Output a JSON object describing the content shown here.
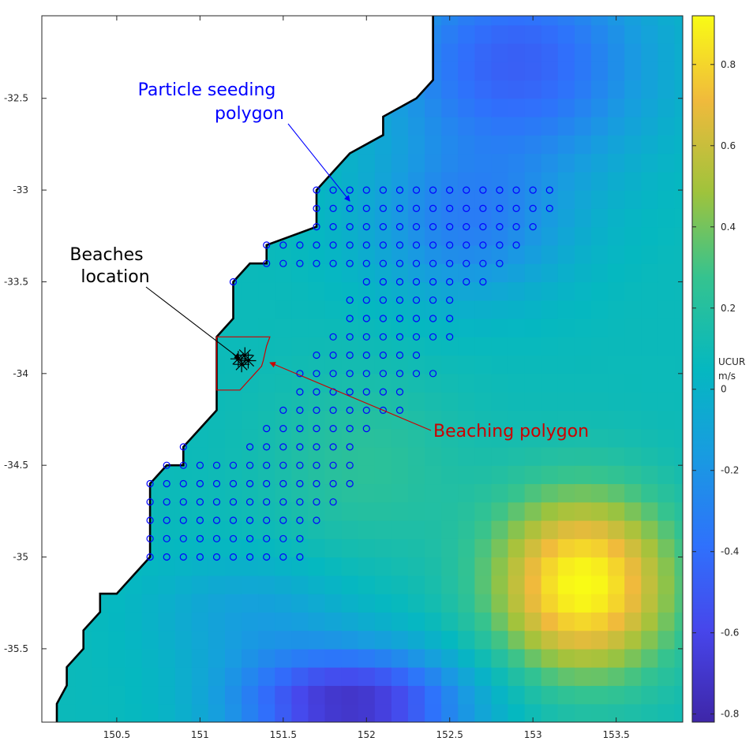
{
  "chart_data": {
    "type": "heatmap",
    "title": "",
    "xlabel": "",
    "ylabel": "",
    "xlim": [
      150.05,
      153.9
    ],
    "ylim": [
      -35.9,
      -32.05
    ],
    "x_ticks": [
      150.5,
      151,
      151.5,
      152,
      152.5,
      153,
      153.5
    ],
    "y_ticks": [
      -32.5,
      -33,
      -33.5,
      -34,
      -34.5,
      -35,
      -35.5
    ],
    "x_tick_labels": [
      "150.5",
      "151",
      "151.5",
      "152",
      "152.5",
      "153",
      "153.5"
    ],
    "y_tick_labels": [
      "-32.5",
      "-33",
      "-33.5",
      "-34",
      "-34.5",
      "-35",
      "-35.5"
    ],
    "grid": false,
    "colorbar": {
      "title": "UCUR",
      "units": "m/s",
      "range": [
        -0.82,
        0.92
      ],
      "ticks": [
        -0.8,
        -0.6,
        -0.4,
        -0.2,
        0,
        0.2,
        0.4,
        0.6,
        0.8
      ],
      "tick_labels": [
        "-0.8",
        "-0.6",
        "-0.4",
        "-0.2",
        "0",
        "0.2",
        "0.4",
        "0.6",
        "0.8"
      ],
      "colormap": "parula"
    },
    "grid_cell_deg": [
      0.1,
      0.1
    ],
    "velocity_features": [
      {
        "lon": 153.3,
        "lat": -35.15,
        "amplitude": 0.85,
        "rx": 0.55,
        "ry": 0.5
      },
      {
        "lon": 151.9,
        "lat": -35.8,
        "amplitude": -0.8,
        "rx": 0.7,
        "ry": 0.3
      },
      {
        "lon": 152.9,
        "lat": -32.3,
        "amplitude": -0.55,
        "rx": 0.8,
        "ry": 0.6
      },
      {
        "lon": 152.6,
        "lat": -33.2,
        "amplitude": -0.35,
        "rx": 0.6,
        "ry": 0.4
      },
      {
        "lon": 152.0,
        "lat": -34.5,
        "amplitude": 0.15,
        "rx": 0.6,
        "ry": 0.5
      },
      {
        "lon": 151.3,
        "lat": -35.3,
        "amplitude": -0.2,
        "rx": 0.6,
        "ry": 0.3
      }
    ],
    "coastline": [
      [
        150.14,
        -35.9
      ],
      [
        150.14,
        -35.8
      ],
      [
        150.2,
        -35.7
      ],
      [
        150.2,
        -35.6
      ],
      [
        150.3,
        -35.5
      ],
      [
        150.3,
        -35.4
      ],
      [
        150.4,
        -35.3
      ],
      [
        150.4,
        -35.2
      ],
      [
        150.5,
        -35.2
      ],
      [
        150.6,
        -35.1
      ],
      [
        150.7,
        -35.0
      ],
      [
        150.7,
        -34.9
      ],
      [
        150.7,
        -34.6
      ],
      [
        150.8,
        -34.5
      ],
      [
        150.9,
        -34.5
      ],
      [
        150.9,
        -34.4
      ],
      [
        151.0,
        -34.3
      ],
      [
        151.1,
        -34.2
      ],
      [
        151.1,
        -34.1
      ],
      [
        151.1,
        -33.8
      ],
      [
        151.2,
        -33.7
      ],
      [
        151.2,
        -33.5
      ],
      [
        151.3,
        -33.4
      ],
      [
        151.4,
        -33.4
      ],
      [
        151.4,
        -33.3
      ],
      [
        151.7,
        -33.2
      ],
      [
        151.7,
        -33.0
      ],
      [
        151.8,
        -32.9
      ],
      [
        151.9,
        -32.8
      ],
      [
        152.1,
        -32.7
      ],
      [
        152.1,
        -32.6
      ],
      [
        152.3,
        -32.5
      ],
      [
        152.4,
        -32.4
      ],
      [
        152.4,
        -32.05
      ]
    ],
    "seed_points_by_lat": [
      {
        "lat": -33.0,
        "lons": [
          151.7,
          151.8,
          151.9,
          152.0,
          152.1,
          152.2,
          152.3,
          152.4,
          152.5,
          152.6,
          152.7,
          152.8,
          152.9,
          153.0,
          153.1
        ]
      },
      {
        "lat": -33.1,
        "lons": [
          151.7,
          151.8,
          151.9,
          152.0,
          152.1,
          152.2,
          152.3,
          152.4,
          152.5,
          152.6,
          152.7,
          152.8,
          152.9,
          153.0,
          153.1
        ]
      },
      {
        "lat": -33.2,
        "lons": [
          151.7,
          151.8,
          151.9,
          152.0,
          152.1,
          152.2,
          152.3,
          152.4,
          152.5,
          152.6,
          152.7,
          152.8,
          152.9,
          153.0
        ]
      },
      {
        "lat": -33.3,
        "lons": [
          151.4,
          151.5,
          151.6,
          151.7,
          151.8,
          151.9,
          152.0,
          152.1,
          152.2,
          152.3,
          152.4,
          152.5,
          152.6,
          152.7,
          152.8,
          152.9
        ]
      },
      {
        "lat": -33.4,
        "lons": [
          151.4,
          151.5,
          151.6,
          151.7,
          151.8,
          151.9,
          152.0,
          152.1,
          152.2,
          152.3,
          152.4,
          152.5,
          152.6,
          152.7,
          152.8
        ]
      },
      {
        "lat": -33.5,
        "lons": [
          151.2,
          152.0,
          152.1,
          152.2,
          152.3,
          152.4,
          152.5,
          152.6,
          152.7
        ]
      },
      {
        "lat": -33.6,
        "lons": [
          151.9,
          152.0,
          152.1,
          152.2,
          152.3,
          152.4,
          152.5
        ]
      },
      {
        "lat": -33.7,
        "lons": [
          151.9,
          152.0,
          152.1,
          152.2,
          152.3,
          152.4,
          152.5
        ]
      },
      {
        "lat": -33.8,
        "lons": [
          151.8,
          151.9,
          152.0,
          152.1,
          152.2,
          152.3,
          152.4,
          152.5
        ]
      },
      {
        "lat": -33.9,
        "lons": [
          151.7,
          151.8,
          151.9,
          152.0,
          152.1,
          152.2,
          152.3
        ]
      },
      {
        "lat": -34.0,
        "lons": [
          151.6,
          151.7,
          151.8,
          151.9,
          152.0,
          152.1,
          152.2,
          152.3,
          152.4
        ]
      },
      {
        "lat": -34.1,
        "lons": [
          151.6,
          151.7,
          151.8,
          151.9,
          152.0,
          152.1,
          152.2
        ]
      },
      {
        "lat": -34.2,
        "lons": [
          151.5,
          151.6,
          151.7,
          151.8,
          151.9,
          152.0,
          152.1,
          152.2
        ]
      },
      {
        "lat": -34.3,
        "lons": [
          151.4,
          151.5,
          151.6,
          151.7,
          151.8,
          151.9,
          152.0
        ]
      },
      {
        "lat": -34.4,
        "lons": [
          150.9,
          151.3,
          151.4,
          151.5,
          151.6,
          151.7,
          151.8,
          151.9
        ]
      },
      {
        "lat": -34.5,
        "lons": [
          150.8,
          150.9,
          151.0,
          151.1,
          151.2,
          151.3,
          151.4,
          151.5,
          151.6,
          151.7,
          151.8,
          151.9
        ]
      },
      {
        "lat": -34.6,
        "lons": [
          150.7,
          150.8,
          150.9,
          151.0,
          151.1,
          151.2,
          151.3,
          151.4,
          151.5,
          151.6,
          151.7,
          151.8,
          151.9
        ]
      },
      {
        "lat": -34.7,
        "lons": [
          150.7,
          150.8,
          150.9,
          151.0,
          151.1,
          151.2,
          151.3,
          151.4,
          151.5,
          151.6,
          151.7,
          151.8
        ]
      },
      {
        "lat": -34.8,
        "lons": [
          150.7,
          150.8,
          150.9,
          151.0,
          151.1,
          151.2,
          151.3,
          151.4,
          151.5,
          151.6,
          151.7
        ]
      },
      {
        "lat": -34.9,
        "lons": [
          150.7,
          150.8,
          150.9,
          151.0,
          151.1,
          151.2,
          151.3,
          151.4,
          151.5,
          151.6
        ]
      },
      {
        "lat": -35.0,
        "lons": [
          150.7,
          150.8,
          150.9,
          151.0,
          151.1,
          151.2,
          151.3,
          151.4,
          151.5,
          151.6
        ]
      }
    ],
    "beaching_polygon": [
      [
        151.1,
        -33.8
      ],
      [
        151.42,
        -33.8
      ],
      [
        151.4,
        -33.85
      ],
      [
        151.38,
        -33.93
      ],
      [
        151.37,
        -33.96
      ],
      [
        151.33,
        -34.0
      ],
      [
        151.28,
        -34.05
      ],
      [
        151.24,
        -34.09
      ],
      [
        151.1,
        -34.09
      ]
    ],
    "beaches_markers": [
      {
        "lon": 151.23,
        "lat": -33.92
      },
      {
        "lon": 151.27,
        "lat": -33.9
      },
      {
        "lon": 151.29,
        "lat": -33.93
      },
      {
        "lon": 151.25,
        "lat": -33.95
      }
    ],
    "annotations": [
      {
        "id": "seeding",
        "lines": [
          "Particle seeding",
          "polygon"
        ],
        "color": "#0000ff",
        "arrow_to": [
          151.9,
          -33.06
        ]
      },
      {
        "id": "beaches",
        "lines": [
          "Beaches",
          "location"
        ],
        "color": "#000000",
        "arrow_to": [
          151.24,
          -33.92
        ]
      },
      {
        "id": "beaching",
        "lines": [
          "Beaching polygon"
        ],
        "color": "#cc0000",
        "arrow_to": [
          151.42,
          -33.94
        ]
      }
    ]
  }
}
